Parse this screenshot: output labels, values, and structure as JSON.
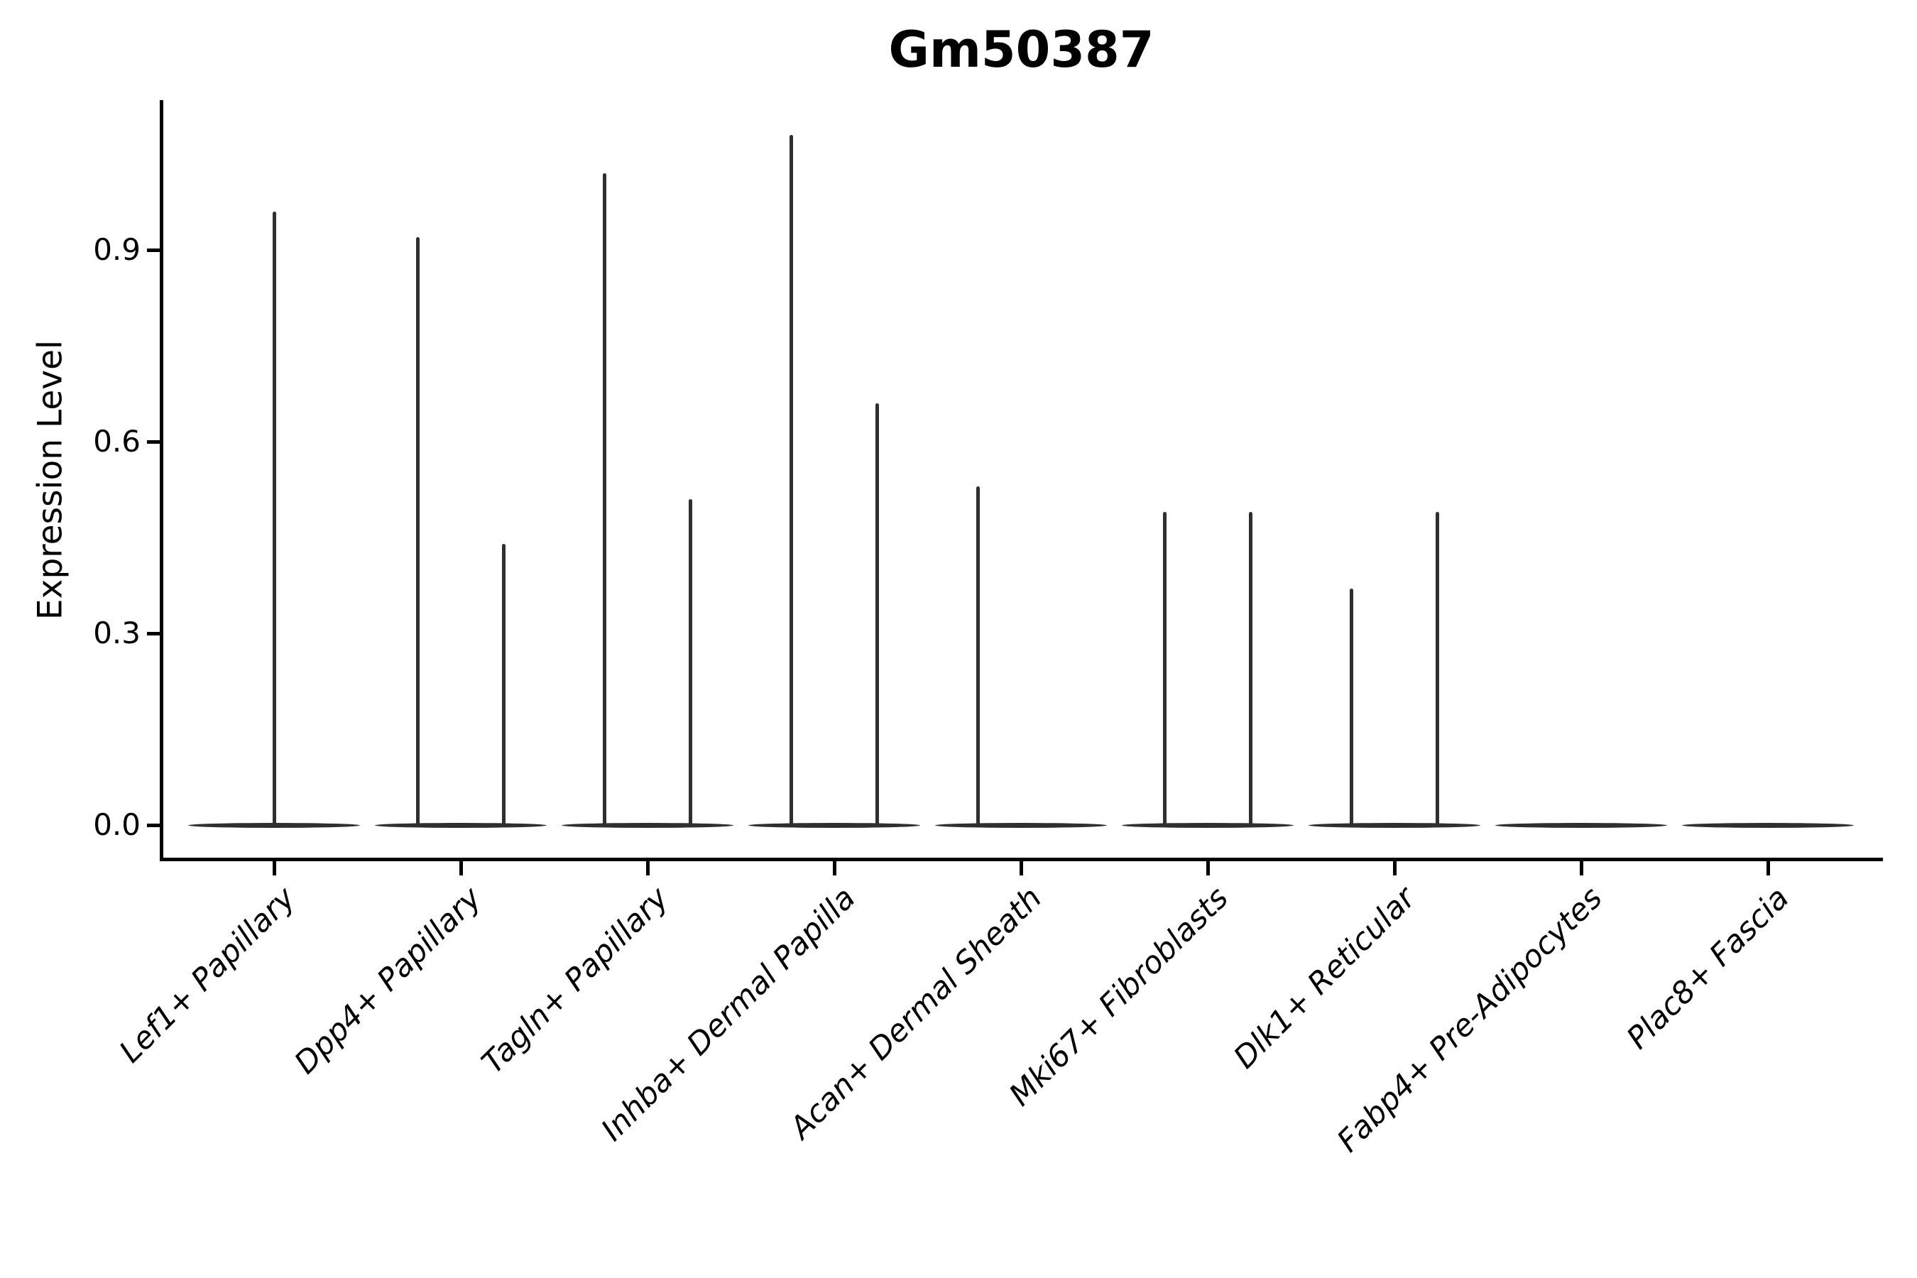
{
  "title": "Gm50387",
  "y_axis": {
    "label": "Expression Level"
  },
  "chart_data": {
    "type": "violin",
    "title": "Gm50387",
    "xlabel": "",
    "ylabel": "Expression Level",
    "ylim": [
      -0.054,
      1.134
    ],
    "grid": false,
    "legend_position": "none",
    "style_note": "Sparse single-cell expression violins: each cell population shows a flattened violin body at 0 with thin needle spikes rising to the maximum expression of rare positive cells; categories with two spikes contain two side-by-side (dodged) violins.",
    "yticks": [
      {
        "value": 0.9,
        "label": "0.9"
      },
      {
        "value": 0.6,
        "label": "0.6"
      },
      {
        "value": 0.3,
        "label": "0.3"
      },
      {
        "value": 0.0,
        "label": "0.0"
      }
    ],
    "categories": [
      "Lef1+ Papillary",
      "Dpp4+ Papillary",
      "Tagln+ Papillary",
      "Inhba+ Dermal Papilla",
      "Acan+ Dermal Sheath",
      "Mki67+ Fibroblasts",
      "Dlk1+ Reticular",
      "Fabp4+ Pre-Adipocytes",
      "Plac8+ Fascia"
    ],
    "violins": [
      {
        "category": "Lef1+ Papillary",
        "baseline": 0.0,
        "spikes": [
          {
            "pos": "center",
            "max": 0.96
          }
        ]
      },
      {
        "category": "Dpp4+ Papillary",
        "baseline": 0.0,
        "spikes": [
          {
            "pos": "left",
            "max": 0.92
          },
          {
            "pos": "right",
            "max": 0.44
          }
        ]
      },
      {
        "category": "Tagln+ Papillary",
        "baseline": 0.0,
        "spikes": [
          {
            "pos": "left",
            "max": 1.02
          },
          {
            "pos": "right",
            "max": 0.51
          }
        ]
      },
      {
        "category": "Inhba+ Dermal Papilla",
        "baseline": 0.0,
        "spikes": [
          {
            "pos": "left",
            "max": 1.08
          },
          {
            "pos": "right",
            "max": 0.66
          }
        ]
      },
      {
        "category": "Acan+ Dermal Sheath",
        "baseline": 0.0,
        "spikes": [
          {
            "pos": "left",
            "max": 0.53
          }
        ]
      },
      {
        "category": "Mki67+ Fibroblasts",
        "baseline": 0.0,
        "spikes": [
          {
            "pos": "left",
            "max": 0.49
          },
          {
            "pos": "right",
            "max": 0.49
          }
        ]
      },
      {
        "category": "Dlk1+ Reticular",
        "baseline": 0.0,
        "spikes": [
          {
            "pos": "left",
            "max": 0.37
          },
          {
            "pos": "right",
            "max": 0.49
          }
        ]
      },
      {
        "category": "Fabp4+ Pre-Adipocytes",
        "baseline": 0.0,
        "spikes": []
      },
      {
        "category": "Plac8+ Fascia",
        "baseline": 0.0,
        "spikes": []
      }
    ],
    "colors": {
      "violin": "#2f2f2f",
      "axis": "#000000",
      "text": "#000000",
      "background": "#ffffff"
    }
  }
}
